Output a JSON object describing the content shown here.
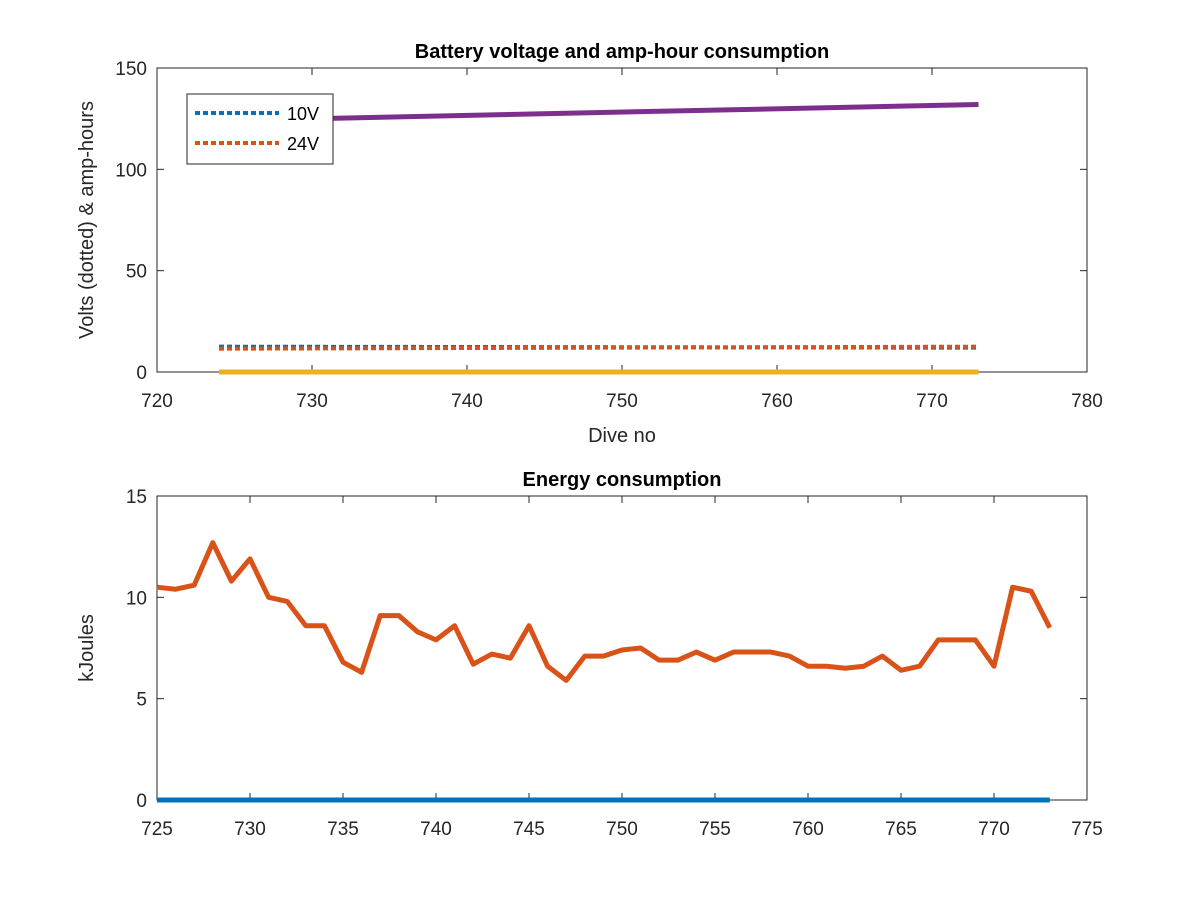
{
  "chart_data": [
    {
      "type": "line",
      "title": "Battery voltage and amp-hour consumption",
      "xlabel": "Dive no",
      "ylabel": "Volts (dotted) & amp-hours",
      "xlim": [
        720,
        780
      ],
      "ylim": [
        0,
        150
      ],
      "xticks": [
        720,
        730,
        740,
        750,
        760,
        770,
        780
      ],
      "yticks": [
        0,
        50,
        100,
        150
      ],
      "legend": {
        "placement": "top-left",
        "entries": [
          "10V",
          "24V"
        ]
      },
      "series": [
        {
          "name": "10V",
          "style": "dotted",
          "color": "#0072BD",
          "x": [
            724,
            773
          ],
          "y": [
            12.5,
            12.0
          ]
        },
        {
          "name": "24V",
          "style": "dotted",
          "color": "#D95319",
          "x": [
            724,
            773
          ],
          "y": [
            11.5,
            12.5
          ]
        },
        {
          "style": "solid",
          "color": "#7E2F8E",
          "x": [
            724,
            773
          ],
          "y": [
            124,
            132
          ]
        },
        {
          "style": "solid",
          "color": "#EDB120",
          "x": [
            724,
            773
          ],
          "y": [
            0,
            0
          ]
        }
      ]
    },
    {
      "type": "line",
      "title": "Energy consumption",
      "xlabel": "",
      "ylabel": "kJoules",
      "xlim": [
        725,
        775
      ],
      "ylim": [
        0,
        15
      ],
      "xticks": [
        725,
        730,
        735,
        740,
        745,
        750,
        755,
        760,
        765,
        770,
        775
      ],
      "yticks": [
        0,
        5,
        10,
        15
      ],
      "series": [
        {
          "style": "solid",
          "color": "#D95319",
          "x": [
            725,
            726,
            727,
            728,
            729,
            730,
            731,
            732,
            733,
            734,
            735,
            736,
            737,
            738,
            739,
            740,
            741,
            742,
            743,
            744,
            745,
            746,
            747,
            748,
            749,
            750,
            751,
            752,
            753,
            754,
            755,
            756,
            757,
            758,
            759,
            760,
            761,
            762,
            763,
            764,
            765,
            766,
            767,
            768,
            769,
            770,
            771,
            772,
            773
          ],
          "y": [
            10.5,
            10.4,
            10.6,
            12.7,
            10.8,
            11.9,
            10.0,
            9.8,
            8.6,
            8.6,
            6.8,
            6.3,
            9.1,
            9.1,
            8.3,
            7.9,
            8.6,
            6.7,
            7.2,
            7.0,
            8.6,
            6.6,
            5.9,
            7.1,
            7.1,
            7.4,
            7.5,
            6.9,
            6.9,
            7.3,
            6.9,
            7.3,
            7.3,
            7.3,
            7.1,
            6.6,
            6.6,
            6.5,
            6.6,
            7.1,
            6.4,
            6.6,
            7.9,
            7.9,
            7.9,
            6.6,
            10.5,
            10.3,
            8.5
          ]
        },
        {
          "style": "solid",
          "color": "#0072BD",
          "x": [
            725,
            773
          ],
          "y": [
            0,
            0
          ]
        }
      ]
    }
  ]
}
